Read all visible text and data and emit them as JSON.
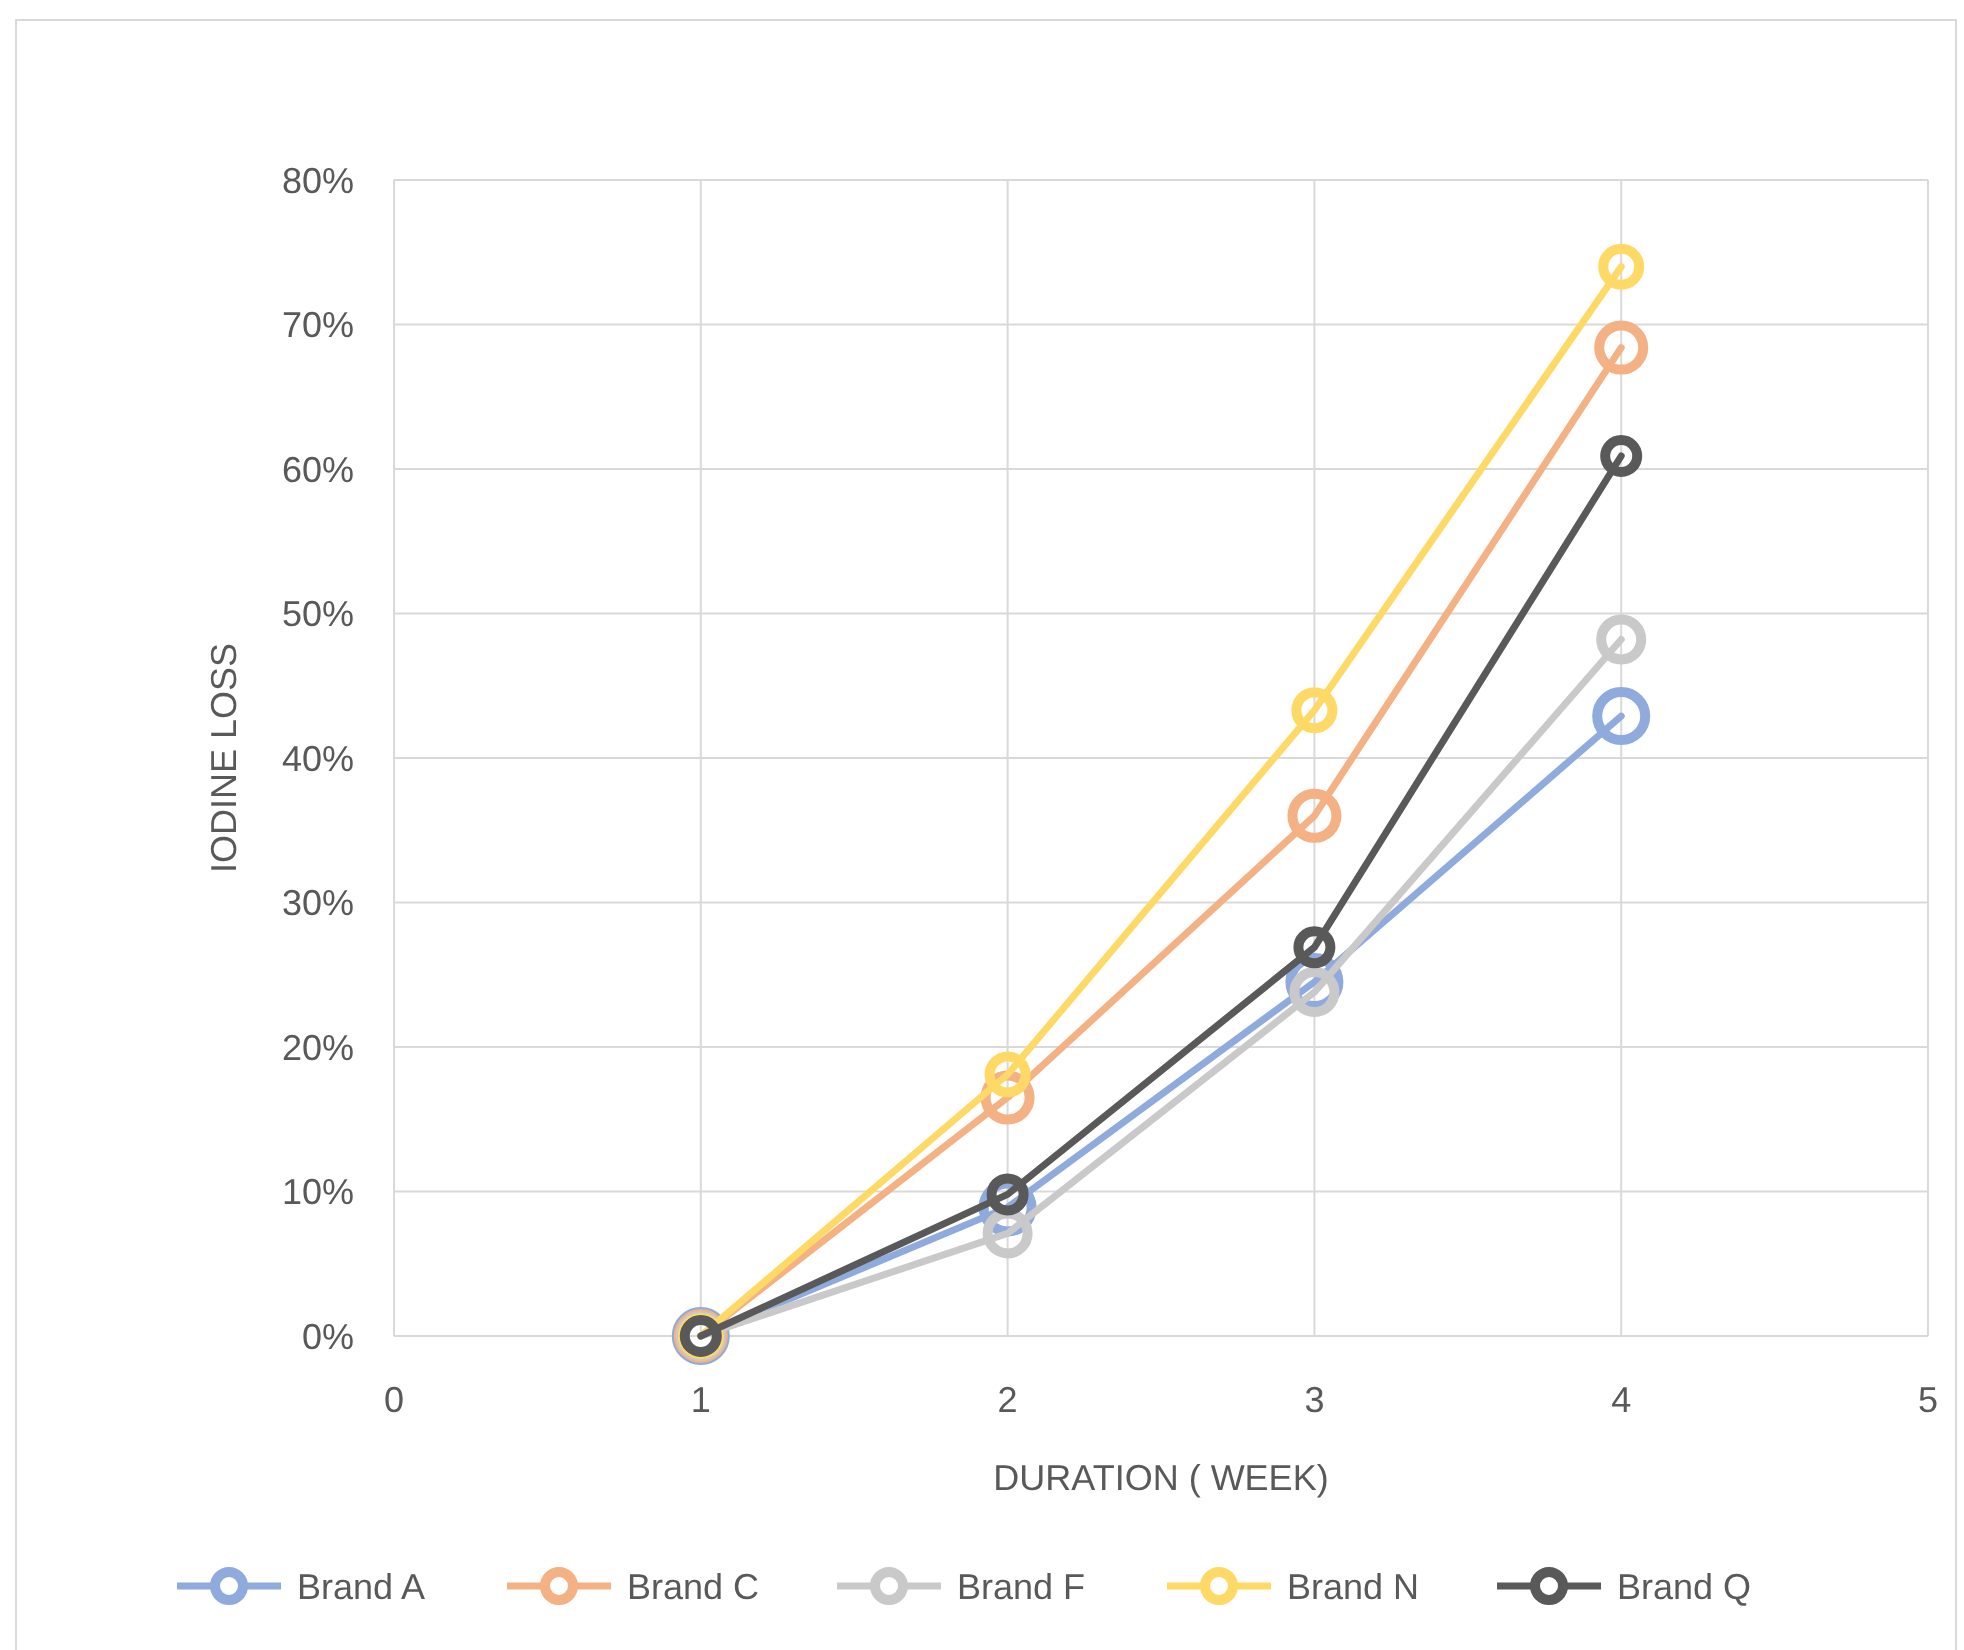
{
  "chart_data": {
    "type": "line",
    "xlabel": "DURATION ( WEEK)",
    "ylabel": "IODINE LOSS",
    "x": [
      1,
      2,
      3,
      4
    ],
    "series": [
      {
        "name": "Brand A",
        "color": "#8faadc",
        "values": [
          0,
          8.9,
          24.5,
          42.9
        ]
      },
      {
        "name": "Brand C",
        "color": "#f4b183",
        "values": [
          0,
          16.5,
          36,
          68.4
        ]
      },
      {
        "name": "Brand F",
        "color": "#c9c9c9",
        "values": [
          0,
          7.1,
          23.8,
          48.2
        ]
      },
      {
        "name": "Brand N",
        "color": "#ffd966",
        "values": [
          0,
          18.1,
          43.3,
          74
        ]
      },
      {
        "name": "Brand Q",
        "color": "#595959",
        "values": [
          0,
          9.8,
          26.9,
          60.9
        ]
      }
    ],
    "xlim": [
      0,
      5
    ],
    "xticks": [
      0,
      1,
      2,
      3,
      4,
      5
    ],
    "ylim": [
      0,
      80
    ],
    "yticks": [
      {
        "value": 0,
        "label": "0%"
      },
      {
        "value": 10,
        "label": "10%"
      },
      {
        "value": 20,
        "label": "20%"
      },
      {
        "value": 30,
        "label": "30%"
      },
      {
        "value": 40,
        "label": "40%"
      },
      {
        "value": 50,
        "label": "50%"
      },
      {
        "value": 60,
        "label": "60%"
      },
      {
        "value": 70,
        "label": "70%"
      },
      {
        "value": 80,
        "label": "80%"
      }
    ],
    "grid": true,
    "legend": "bottom",
    "marker": "circle",
    "line_style": "solid"
  }
}
